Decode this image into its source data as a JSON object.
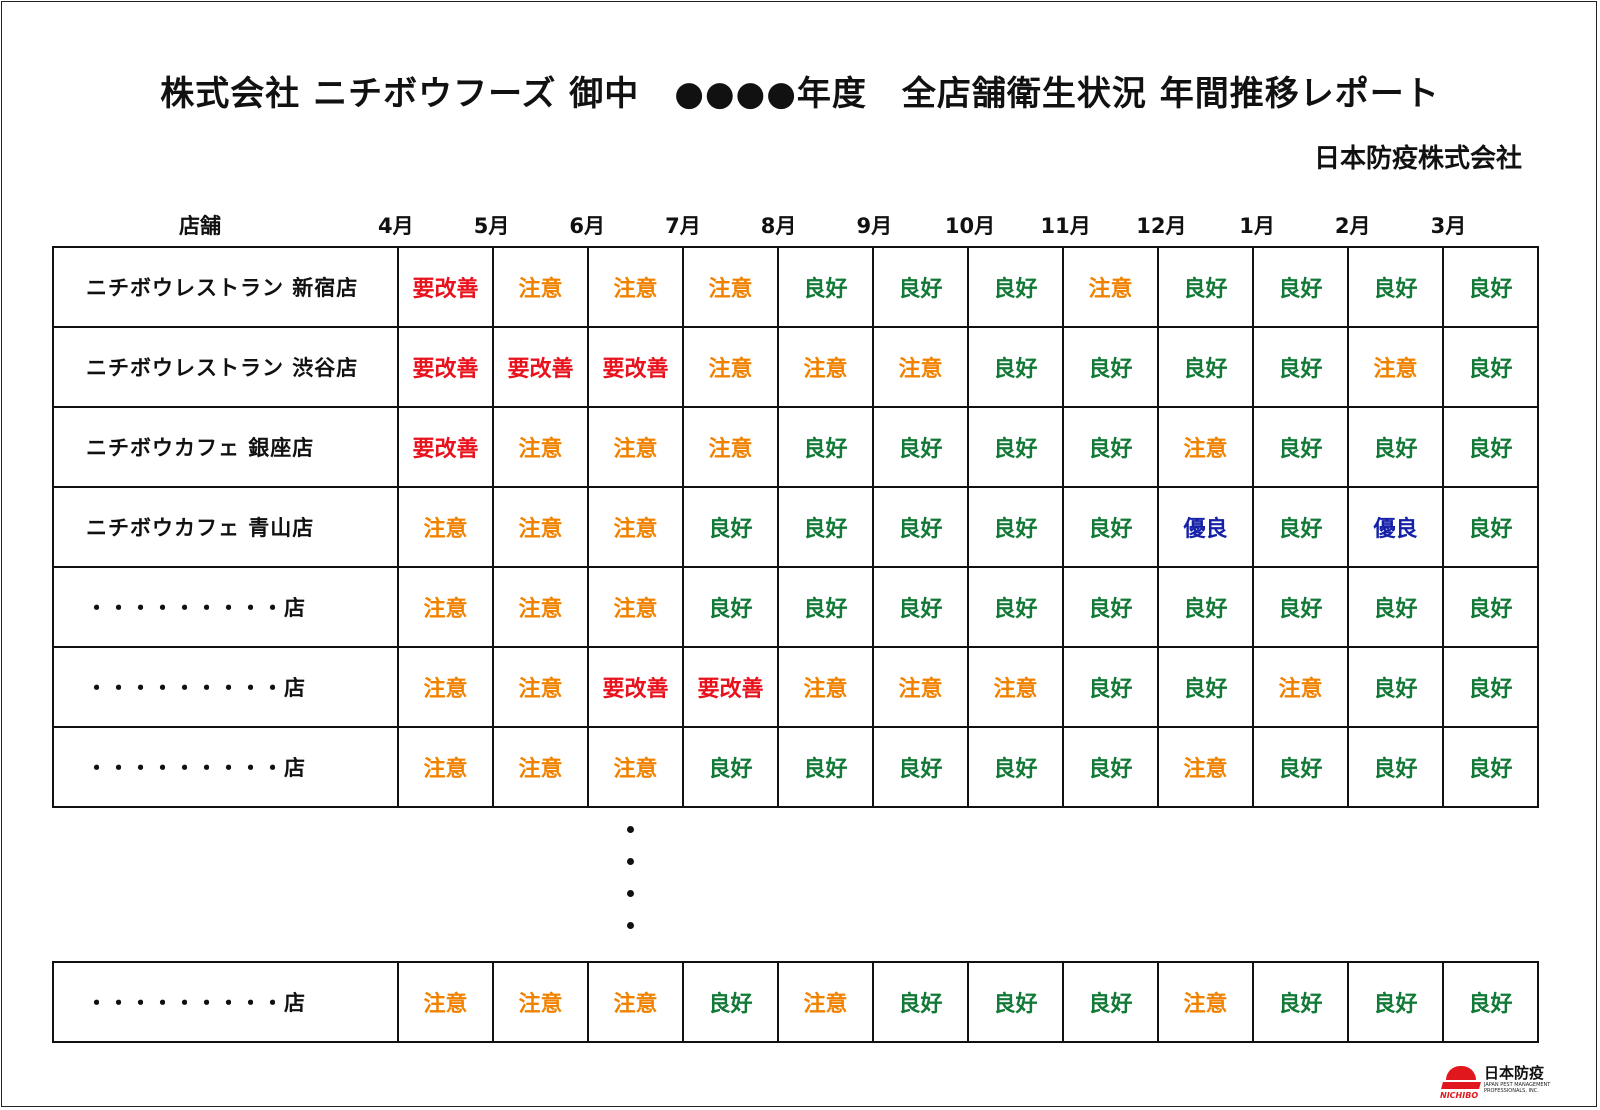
{
  "title": "株式会社 ニチボウフーズ 御中　●●●●年度　全店舗衛生状況 年間推移レポート",
  "company": "日本防疫株式会社",
  "header": {
    "store_label": "店舗",
    "months": [
      "4月",
      "5月",
      "6月",
      "7月",
      "8月",
      "9月",
      "10月",
      "11月",
      "12月",
      "1月",
      "2月",
      "3月"
    ]
  },
  "statuses": {
    "要改善": "#e8121c",
    "注意": "#f08200",
    "良好": "#127a36",
    "優良": "#1520a8"
  },
  "rows": [
    {
      "store": "ニチボウレストラン 新宿店",
      "values": [
        "要改善",
        "注意",
        "注意",
        "注意",
        "良好",
        "良好",
        "良好",
        "注意",
        "良好",
        "良好",
        "良好",
        "良好"
      ]
    },
    {
      "store": "ニチボウレストラン 渋谷店",
      "values": [
        "要改善",
        "要改善",
        "要改善",
        "注意",
        "注意",
        "注意",
        "良好",
        "良好",
        "良好",
        "良好",
        "注意",
        "良好"
      ]
    },
    {
      "store": "ニチボウカフェ 銀座店",
      "values": [
        "要改善",
        "注意",
        "注意",
        "注意",
        "良好",
        "良好",
        "良好",
        "良好",
        "注意",
        "良好",
        "良好",
        "良好"
      ]
    },
    {
      "store": "ニチボウカフェ 青山店",
      "values": [
        "注意",
        "注意",
        "注意",
        "良好",
        "良好",
        "良好",
        "良好",
        "良好",
        "優良",
        "良好",
        "優良",
        "良好"
      ]
    },
    {
      "store": "・・・・・・・・・店",
      "values": [
        "注意",
        "注意",
        "注意",
        "良好",
        "良好",
        "良好",
        "良好",
        "良好",
        "良好",
        "良好",
        "良好",
        "良好"
      ]
    },
    {
      "store": "・・・・・・・・・店",
      "values": [
        "注意",
        "注意",
        "要改善",
        "要改善",
        "注意",
        "注意",
        "注意",
        "良好",
        "良好",
        "注意",
        "良好",
        "良好"
      ]
    },
    {
      "store": "・・・・・・・・・店",
      "values": [
        "注意",
        "注意",
        "注意",
        "良好",
        "良好",
        "良好",
        "良好",
        "良好",
        "注意",
        "良好",
        "良好",
        "良好"
      ]
    }
  ],
  "last_row": {
    "store": "・・・・・・・・・店",
    "values": [
      "注意",
      "注意",
      "注意",
      "良好",
      "注意",
      "良好",
      "良好",
      "良好",
      "注意",
      "良好",
      "良好",
      "良好"
    ]
  },
  "logo": {
    "brand": "NICHIBO",
    "jp": "日本防疫",
    "en": "JAPAN PEST MANAGEMENT PROFESSIONALS, INC."
  }
}
